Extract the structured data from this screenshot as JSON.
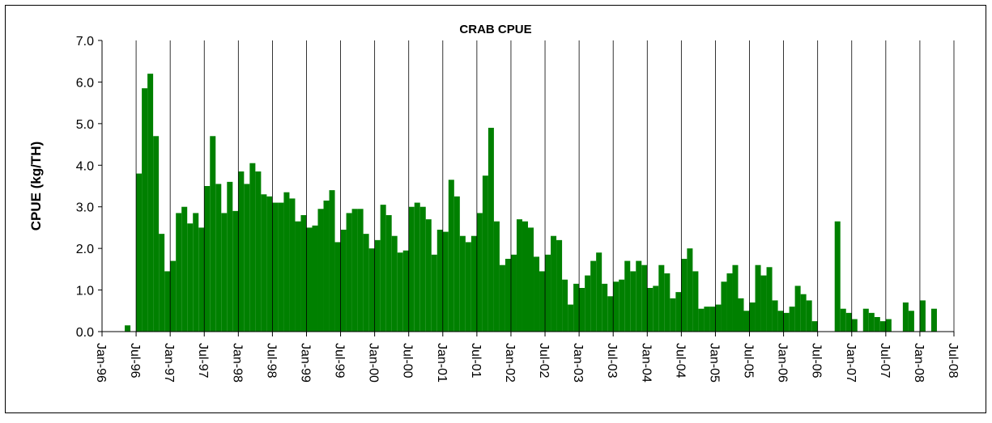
{
  "chart_data": {
    "type": "bar",
    "title": "CRAB CPUE",
    "y_label": "CPUE (kg/TH)",
    "color": "#008000",
    "grid": "x",
    "ylim": [
      0,
      7
    ],
    "yticks": [
      {
        "value": 0,
        "label": "0.0"
      },
      {
        "value": 1,
        "label": "1.0"
      },
      {
        "value": 2,
        "label": "2.0"
      },
      {
        "value": 3,
        "label": "3.0"
      },
      {
        "value": 4,
        "label": "4.0"
      },
      {
        "value": 5,
        "label": "5.0"
      },
      {
        "value": 6,
        "label": "6.0"
      },
      {
        "value": 7,
        "label": "7.0"
      }
    ],
    "xlim": [
      "1996-01",
      "2008-07"
    ],
    "xticks": [
      {
        "value": "1996-01",
        "label": "Jan-96"
      },
      {
        "value": "1996-07",
        "label": "Jul-96"
      },
      {
        "value": "1997-01",
        "label": "Jan-97"
      },
      {
        "value": "1997-07",
        "label": "Jul-97"
      },
      {
        "value": "1998-01",
        "label": "Jan-98"
      },
      {
        "value": "1998-07",
        "label": "Jul-98"
      },
      {
        "value": "1999-01",
        "label": "Jan-99"
      },
      {
        "value": "1999-07",
        "label": "Jul-99"
      },
      {
        "value": "2000-01",
        "label": "Jan-00"
      },
      {
        "value": "2000-07",
        "label": "Jul-00"
      },
      {
        "value": "2001-01",
        "label": "Jan-01"
      },
      {
        "value": "2001-07",
        "label": "Jul-01"
      },
      {
        "value": "2002-01",
        "label": "Jan-02"
      },
      {
        "value": "2002-07",
        "label": "Jul-02"
      },
      {
        "value": "2003-01",
        "label": "Jan-03"
      },
      {
        "value": "2003-07",
        "label": "Jul-03"
      },
      {
        "value": "2004-01",
        "label": "Jan-04"
      },
      {
        "value": "2004-07",
        "label": "Jul-04"
      },
      {
        "value": "2005-01",
        "label": "Jan-05"
      },
      {
        "value": "2005-07",
        "label": "Jul-05"
      },
      {
        "value": "2006-01",
        "label": "Jan-06"
      },
      {
        "value": "2006-07",
        "label": "Jul-06"
      },
      {
        "value": "2007-01",
        "label": "Jan-07"
      },
      {
        "value": "2007-07",
        "label": "Jul-07"
      },
      {
        "value": "2008-01",
        "label": "Jan-08"
      },
      {
        "value": "2008-07",
        "label": "Jul-08"
      }
    ],
    "x": [
      "1996-05",
      "1996-06",
      "1996-07",
      "1996-08",
      "1996-09",
      "1996-10",
      "1996-11",
      "1996-12",
      "1997-01",
      "1997-02",
      "1997-03",
      "1997-04",
      "1997-05",
      "1997-06",
      "1997-07",
      "1997-08",
      "1997-09",
      "1997-10",
      "1997-11",
      "1997-12",
      "1998-01",
      "1998-02",
      "1998-03",
      "1998-04",
      "1998-05",
      "1998-06",
      "1998-07",
      "1998-08",
      "1998-09",
      "1998-10",
      "1998-11",
      "1998-12",
      "1999-01",
      "1999-02",
      "1999-03",
      "1999-04",
      "1999-05",
      "1999-06",
      "1999-07",
      "1999-08",
      "1999-09",
      "1999-10",
      "1999-11",
      "1999-12",
      "2000-01",
      "2000-02",
      "2000-03",
      "2000-04",
      "2000-05",
      "2000-06",
      "2000-07",
      "2000-08",
      "2000-09",
      "2000-10",
      "2000-11",
      "2000-12",
      "2001-01",
      "2001-02",
      "2001-03",
      "2001-04",
      "2001-05",
      "2001-06",
      "2001-07",
      "2001-08",
      "2001-09",
      "2001-10",
      "2001-11",
      "2001-12",
      "2002-01",
      "2002-02",
      "2002-03",
      "2002-04",
      "2002-05",
      "2002-06",
      "2002-07",
      "2002-08",
      "2002-09",
      "2002-10",
      "2002-11",
      "2002-12",
      "2003-01",
      "2003-02",
      "2003-03",
      "2003-04",
      "2003-05",
      "2003-06",
      "2003-07",
      "2003-08",
      "2003-09",
      "2003-10",
      "2003-11",
      "2003-12",
      "2004-01",
      "2004-02",
      "2004-03",
      "2004-04",
      "2004-05",
      "2004-06",
      "2004-07",
      "2004-08",
      "2004-09",
      "2004-10",
      "2004-11",
      "2004-12",
      "2005-01",
      "2005-02",
      "2005-03",
      "2005-04",
      "2005-05",
      "2005-06",
      "2005-07",
      "2005-08",
      "2005-09",
      "2005-10",
      "2005-11",
      "2005-12",
      "2006-01",
      "2006-02",
      "2006-03",
      "2006-04",
      "2006-05",
      "2006-06",
      "2006-07",
      "2006-08",
      "2006-09",
      "2006-10",
      "2006-11",
      "2006-12",
      "2007-01",
      "2007-02",
      "2007-03",
      "2007-04",
      "2007-05",
      "2007-06",
      "2007-07",
      "2007-08",
      "2007-09",
      "2007-10",
      "2007-11",
      "2007-12",
      "2008-01",
      "2008-02",
      "2008-03"
    ],
    "values": [
      0.15,
      null,
      3.8,
      5.85,
      6.2,
      4.7,
      2.35,
      1.45,
      1.7,
      2.85,
      3.0,
      2.6,
      2.85,
      2.5,
      3.5,
      4.7,
      3.55,
      2.85,
      3.6,
      2.9,
      3.85,
      3.55,
      4.05,
      3.85,
      3.3,
      3.25,
      3.1,
      3.1,
      3.35,
      3.2,
      2.65,
      2.8,
      2.5,
      2.55,
      2.95,
      3.15,
      3.4,
      2.15,
      2.45,
      2.85,
      2.95,
      2.95,
      2.35,
      2.0,
      2.2,
      3.05,
      2.8,
      2.3,
      1.9,
      1.95,
      3.0,
      3.1,
      3.0,
      2.7,
      1.85,
      2.45,
      2.4,
      3.65,
      3.25,
      2.3,
      2.15,
      2.3,
      2.85,
      3.75,
      4.9,
      2.65,
      1.6,
      1.75,
      1.85,
      2.7,
      2.65,
      2.5,
      1.8,
      1.45,
      1.85,
      2.3,
      2.2,
      1.25,
      0.65,
      1.15,
      1.05,
      1.35,
      1.7,
      1.9,
      1.15,
      0.85,
      1.2,
      1.25,
      1.7,
      1.45,
      1.7,
      1.6,
      1.05,
      1.1,
      1.6,
      1.4,
      0.8,
      0.95,
      1.75,
      2.0,
      1.45,
      0.55,
      0.6,
      0.6,
      0.65,
      1.2,
      1.4,
      1.6,
      0.8,
      0.5,
      0.7,
      1.6,
      1.35,
      1.55,
      0.75,
      0.5,
      0.45,
      0.6,
      1.1,
      0.9,
      0.75,
      0.25,
      null,
      null,
      null,
      2.65,
      0.55,
      0.45,
      0.3,
      null,
      0.55,
      0.45,
      0.35,
      0.25,
      0.3,
      null,
      null,
      0.7,
      0.5,
      null,
      0.75,
      null,
      0.55
    ]
  }
}
